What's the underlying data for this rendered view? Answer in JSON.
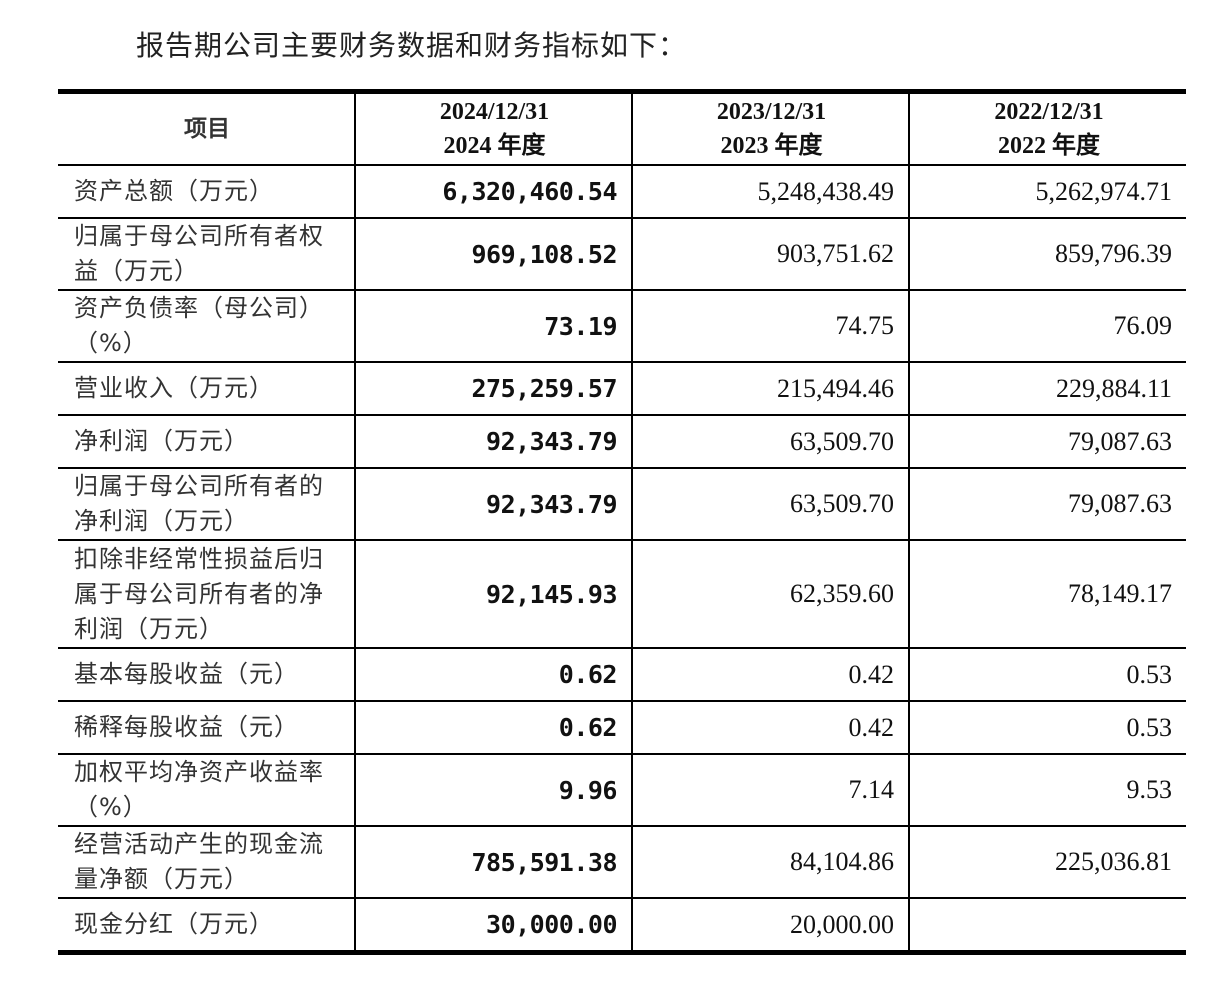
{
  "intro_text": "报告期公司主要财务数据和财务指标如下：",
  "table": {
    "headers": [
      {
        "line1": "项目",
        "line2": ""
      },
      {
        "line1": "2024/12/31",
        "line2": "2024 年度"
      },
      {
        "line1": "2023/12/31",
        "line2": "2023 年度"
      },
      {
        "line1": "2022/12/31",
        "line2": "2022 年度"
      }
    ],
    "rows": [
      {
        "label": "资产总额（万元）",
        "y2024": "6,320,460.54",
        "y2023": "5,248,438.49",
        "y2022": "5,262,974.71"
      },
      {
        "label": "归属于母公司所有者权益（万元）",
        "y2024": "969,108.52",
        "y2023": "903,751.62",
        "y2022": "859,796.39"
      },
      {
        "label": "资产负债率（母公司）（%）",
        "y2024": "73.19",
        "y2023": "74.75",
        "y2022": "76.09"
      },
      {
        "label": "营业收入（万元）",
        "y2024": "275,259.57",
        "y2023": "215,494.46",
        "y2022": "229,884.11"
      },
      {
        "label": "净利润（万元）",
        "y2024": "92,343.79",
        "y2023": "63,509.70",
        "y2022": "79,087.63"
      },
      {
        "label": "归属于母公司所有者的净利润（万元）",
        "y2024": "92,343.79",
        "y2023": "63,509.70",
        "y2022": "79,087.63"
      },
      {
        "label": "扣除非经常性损益后归属于母公司所有者的净利润（万元）",
        "y2024": "92,145.93",
        "y2023": "62,359.60",
        "y2022": "78,149.17"
      },
      {
        "label": "基本每股收益（元）",
        "y2024": "0.62",
        "y2023": "0.42",
        "y2022": "0.53"
      },
      {
        "label": "稀释每股收益（元）",
        "y2024": "0.62",
        "y2023": "0.42",
        "y2022": "0.53"
      },
      {
        "label": "加权平均净资产收益率（%）",
        "y2024": "9.96",
        "y2023": "7.14",
        "y2022": "9.53"
      },
      {
        "label": "经营活动产生的现金流量净额（万元）",
        "y2024": "785,591.38",
        "y2023": "84,104.86",
        "y2022": "225,036.81"
      },
      {
        "label": "现金分红（万元）",
        "y2024": "30,000.00",
        "y2023": "20,000.00",
        "y2022": ""
      }
    ]
  }
}
